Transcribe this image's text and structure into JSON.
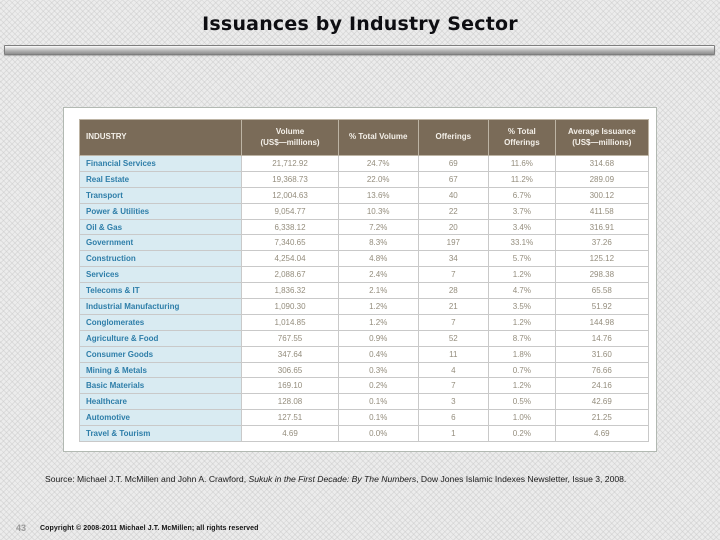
{
  "slide": {
    "title": "Issuances by Industry Sector",
    "page_number": "43",
    "copyright": "Copyright © 2008-2011 Michael J.T. McMillen; all rights reserved",
    "source": {
      "prefix": "Source: Michael J.T. McMillen and John A. Crawford, ",
      "italic_title": "Sukuk in the First Decade: By The Numbers",
      "suffix": ", Dow Jones Islamic Indexes Newsletter, Issue 3, 2008."
    }
  },
  "table": {
    "columns": [
      "INDUSTRY",
      "Volume\n(US$—millions)",
      "% Total Volume",
      "Offerings",
      "% Total\nOfferings",
      "Average Issuance\n(US$—millions)"
    ],
    "rows": [
      [
        "Financial Services",
        "21,712.92",
        "24.7%",
        "69",
        "11.6%",
        "314.68"
      ],
      [
        "Real Estate",
        "19,368.73",
        "22.0%",
        "67",
        "11.2%",
        "289.09"
      ],
      [
        "Transport",
        "12,004.63",
        "13.6%",
        "40",
        "6.7%",
        "300.12"
      ],
      [
        "Power & Utilities",
        "9,054.77",
        "10.3%",
        "22",
        "3.7%",
        "411.58"
      ],
      [
        "Oil & Gas",
        "6,338.12",
        "7.2%",
        "20",
        "3.4%",
        "316.91"
      ],
      [
        "Government",
        "7,340.65",
        "8.3%",
        "197",
        "33.1%",
        "37.26"
      ],
      [
        "Construction",
        "4,254.04",
        "4.8%",
        "34",
        "5.7%",
        "125.12"
      ],
      [
        "Services",
        "2,088.67",
        "2.4%",
        "7",
        "1.2%",
        "298.38"
      ],
      [
        "Telecoms & IT",
        "1,836.32",
        "2.1%",
        "28",
        "4.7%",
        "65.58"
      ],
      [
        "Industrial Manufacturing",
        "1,090.30",
        "1.2%",
        "21",
        "3.5%",
        "51.92"
      ],
      [
        "Conglomerates",
        "1,014.85",
        "1.2%",
        "7",
        "1.2%",
        "144.98"
      ],
      [
        "Agriculture & Food",
        "767.55",
        "0.9%",
        "52",
        "8.7%",
        "14.76"
      ],
      [
        "Consumer Goods",
        "347.64",
        "0.4%",
        "11",
        "1.8%",
        "31.60"
      ],
      [
        "Mining & Metals",
        "306.65",
        "0.3%",
        "4",
        "0.7%",
        "76.66"
      ],
      [
        "Basic Materials",
        "169.10",
        "0.2%",
        "7",
        "1.2%",
        "24.16"
      ],
      [
        "Healthcare",
        "128.08",
        "0.1%",
        "3",
        "0.5%",
        "42.69"
      ],
      [
        "Automotive",
        "127.51",
        "0.1%",
        "6",
        "1.0%",
        "21.25"
      ],
      [
        "Travel & Tourism",
        "4.69",
        "0.0%",
        "1",
        "0.2%",
        "4.69"
      ]
    ]
  },
  "colors": {
    "header_bg": "#7a6b58",
    "industry_bg": "#d9ebf2",
    "industry_text": "#2e7ea9",
    "data_text": "#948d7d"
  }
}
